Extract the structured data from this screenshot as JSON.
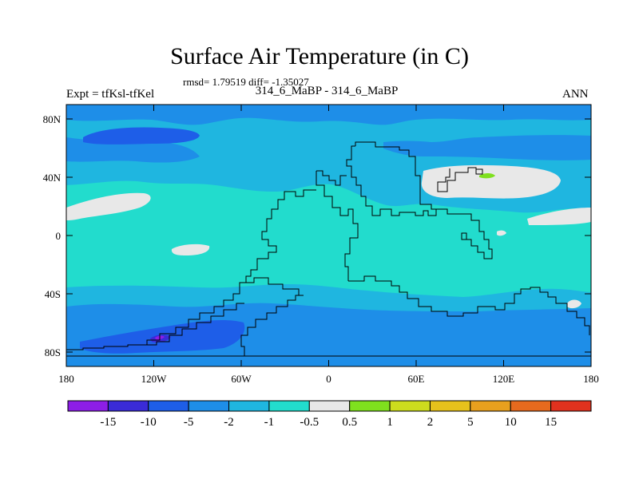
{
  "title": "Surface Air Temperature (in C)",
  "stats": "rmsd= 1.79519 diff= -1.35027",
  "left_label": "Expt = tfKsl-tfKel",
  "center_label": "314_6_MaBP - 314_6_MaBP",
  "right_label": "ANN",
  "map": {
    "lon_ticks": [
      "180",
      "120W",
      "60W",
      "0",
      "60E",
      "120E",
      "180"
    ],
    "lat_ticks": [
      "80N",
      "40N",
      "0",
      "40S",
      "80S"
    ]
  },
  "colorbar": {
    "colors": [
      "#8d1ee6",
      "#3a2bd8",
      "#1e5ee8",
      "#1e8ee8",
      "#1fb6e0",
      "#22dccd",
      "#e8e8e8",
      "#7fe01e",
      "#cddc1e",
      "#e6c21c",
      "#e8a01e",
      "#e66a1e",
      "#e0321e"
    ],
    "labels": [
      "-15",
      "-10",
      "-5",
      "-2",
      "-1",
      "-0.5",
      "0.5",
      "1",
      "2",
      "5",
      "10",
      "15"
    ]
  }
}
